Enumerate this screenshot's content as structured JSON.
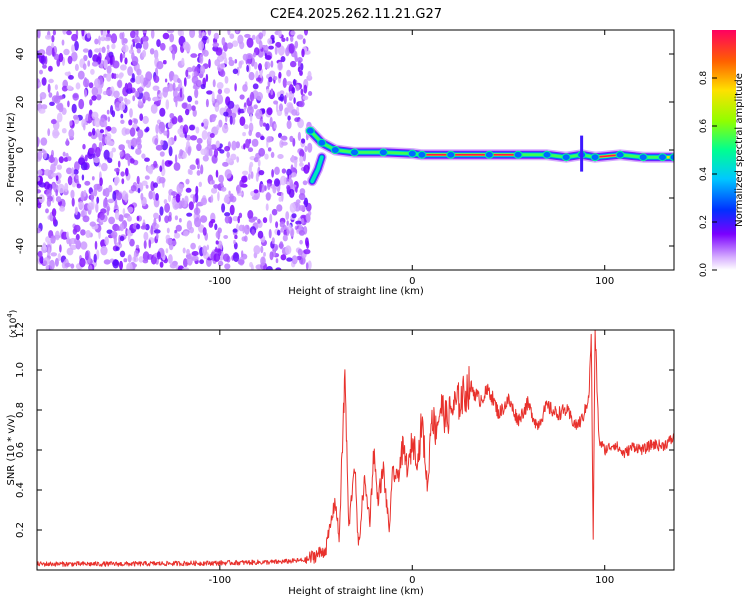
{
  "title": "C2E4.2025.262.11.21.G27",
  "colorbar": {
    "label": "Normalized spectral amplitude",
    "ticks": [
      {
        "v": 0.0,
        "t": "0.0"
      },
      {
        "v": 0.2,
        "t": "0.2"
      },
      {
        "v": 0.4,
        "t": "0.4"
      },
      {
        "v": 0.6,
        "t": "0.6"
      },
      {
        "v": 0.8,
        "t": "0.8"
      }
    ],
    "range": [
      0,
      1
    ]
  },
  "chart_data": [
    {
      "type": "heatmap",
      "title": "C2E4.2025.262.11.21.G27",
      "xlabel": "Height of straight line (km)",
      "ylabel": "Frequency (Hz)",
      "xlim": [
        -195,
        136
      ],
      "ylim": [
        -50,
        50
      ],
      "xticks": [
        {
          "v": -100,
          "t": "-100"
        },
        {
          "v": 0,
          "t": "0"
        },
        {
          "v": 100,
          "t": "100"
        }
      ],
      "yticks": [
        {
          "v": -40,
          "t": "-40"
        },
        {
          "v": -20,
          "t": "-20"
        },
        {
          "v": 0,
          "t": "0"
        },
        {
          "v": 20,
          "t": "20"
        },
        {
          "v": 40,
          "t": "40"
        }
      ],
      "noise_region_x": [
        -195,
        -53
      ],
      "signal_track": [
        {
          "x": -53,
          "f": 8,
          "amp": 0.35
        },
        {
          "x": -47,
          "f": 3,
          "amp": 0.3
        },
        {
          "x": -40,
          "f": 0,
          "amp": 0.3
        },
        {
          "x": -30,
          "f": -1,
          "amp": 0.3
        },
        {
          "x": -15,
          "f": -1,
          "amp": 0.3
        },
        {
          "x": 0,
          "f": -1.5,
          "amp": 0.35
        },
        {
          "x": 5,
          "f": -2,
          "amp": 0.9
        },
        {
          "x": 20,
          "f": -2,
          "amp": 0.95
        },
        {
          "x": 40,
          "f": -2,
          "amp": 0.95
        },
        {
          "x": 55,
          "f": -2,
          "amp": 0.85
        },
        {
          "x": 70,
          "f": -2,
          "amp": 0.55
        },
        {
          "x": 80,
          "f": -3,
          "amp": 0.95
        },
        {
          "x": 88,
          "f": -2,
          "amp": 0.35
        },
        {
          "x": 95,
          "f": -3,
          "amp": 0.85
        },
        {
          "x": 108,
          "f": -2,
          "amp": 0.9
        },
        {
          "x": 120,
          "f": -3,
          "amp": 0.6
        },
        {
          "x": 130,
          "f": -3,
          "amp": 0.9
        },
        {
          "x": 136,
          "f": -3,
          "amp": 0.7
        }
      ],
      "branch_track": [
        {
          "x": -52,
          "f": -13
        },
        {
          "x": -49,
          "f": -8
        },
        {
          "x": -47,
          "f": -3
        }
      ]
    },
    {
      "type": "line",
      "xlabel": "Height of straight line (km)",
      "ylabel": "SNR (10 * v/v)",
      "scale_label": "(x10",
      "scale_exp": "4",
      "scale_close": ")",
      "xlim": [
        -195,
        136
      ],
      "ylim": [
        0,
        1.2
      ],
      "xticks": [
        {
          "v": -100,
          "t": "-100"
        },
        {
          "v": 0,
          "t": "0"
        },
        {
          "v": 100,
          "t": "100"
        }
      ],
      "yticks": [
        {
          "v": 0.2,
          "t": "0.2"
        },
        {
          "v": 0.4,
          "t": "0.4"
        },
        {
          "v": 0.6,
          "t": "0.6"
        },
        {
          "v": 0.8,
          "t": "0.8"
        },
        {
          "v": 1.0,
          "t": "1.0"
        },
        {
          "v": 1.2,
          "t": "1.2"
        }
      ],
      "series": [
        {
          "name": "SNR",
          "color": "#e8312c",
          "x": [
            -195,
            -150,
            -100,
            -70,
            -55,
            -45,
            -40,
            -38,
            -35,
            -33,
            -30,
            -28,
            -25,
            -22,
            -20,
            -18,
            -15,
            -12,
            -10,
            -8,
            -5,
            -2,
            0,
            3,
            5,
            8,
            10,
            12,
            15,
            18,
            20,
            25,
            30,
            35,
            40,
            45,
            50,
            55,
            60,
            65,
            70,
            75,
            80,
            85,
            88,
            90,
            92,
            93,
            94,
            95,
            97,
            100,
            105,
            110,
            115,
            120,
            125,
            130,
            136
          ],
          "values": [
            0.03,
            0.03,
            0.035,
            0.04,
            0.05,
            0.1,
            0.35,
            0.15,
            0.98,
            0.2,
            0.55,
            0.1,
            0.45,
            0.25,
            0.6,
            0.35,
            0.5,
            0.2,
            0.5,
            0.45,
            0.6,
            0.5,
            0.65,
            0.55,
            0.75,
            0.4,
            0.8,
            0.7,
            0.82,
            0.75,
            0.8,
            0.85,
            0.92,
            0.85,
            0.9,
            0.78,
            0.85,
            0.75,
            0.83,
            0.72,
            0.82,
            0.78,
            0.8,
            0.72,
            0.75,
            0.8,
            0.9,
            1.2,
            0.15,
            1.2,
            0.65,
            0.6,
            0.63,
            0.58,
            0.62,
            0.6,
            0.63,
            0.62,
            0.66
          ]
        }
      ]
    }
  ]
}
